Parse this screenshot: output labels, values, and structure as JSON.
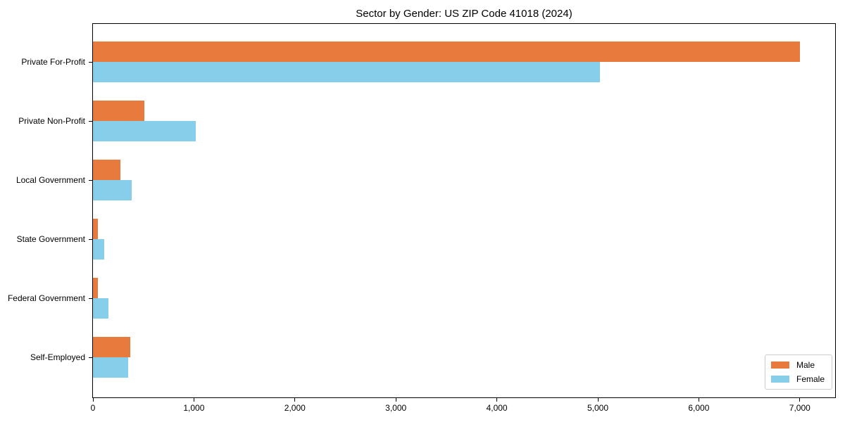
{
  "chart_data": {
    "type": "bar",
    "orientation": "horizontal",
    "title": "Sector by Gender: US ZIP Code 41018 (2024)",
    "xlabel": "",
    "ylabel": "",
    "categories": [
      "Private For-Profit",
      "Private Non-Profit",
      "Local Government",
      "State Government",
      "Federal Government",
      "Self-Employed"
    ],
    "series": [
      {
        "name": "Male",
        "color": "#E87A3D",
        "values": [
          7000,
          510,
          270,
          45,
          45,
          370
        ]
      },
      {
        "name": "Female",
        "color": "#87CEEB",
        "values": [
          5020,
          1020,
          385,
          110,
          150,
          350
        ]
      }
    ],
    "xlim": [
      0,
      7350
    ],
    "xticks": [
      0,
      1000,
      2000,
      3000,
      4000,
      5000,
      6000,
      7000
    ],
    "xtick_labels": [
      "0",
      "1,000",
      "2,000",
      "3,000",
      "4,000",
      "5,000",
      "6,000",
      "7,000"
    ],
    "grid": false,
    "legend_position": "lower right",
    "colors": {
      "spine": "#000000",
      "text": "#000000",
      "legend_border": "#cccccc",
      "background": "#ffffff"
    }
  }
}
